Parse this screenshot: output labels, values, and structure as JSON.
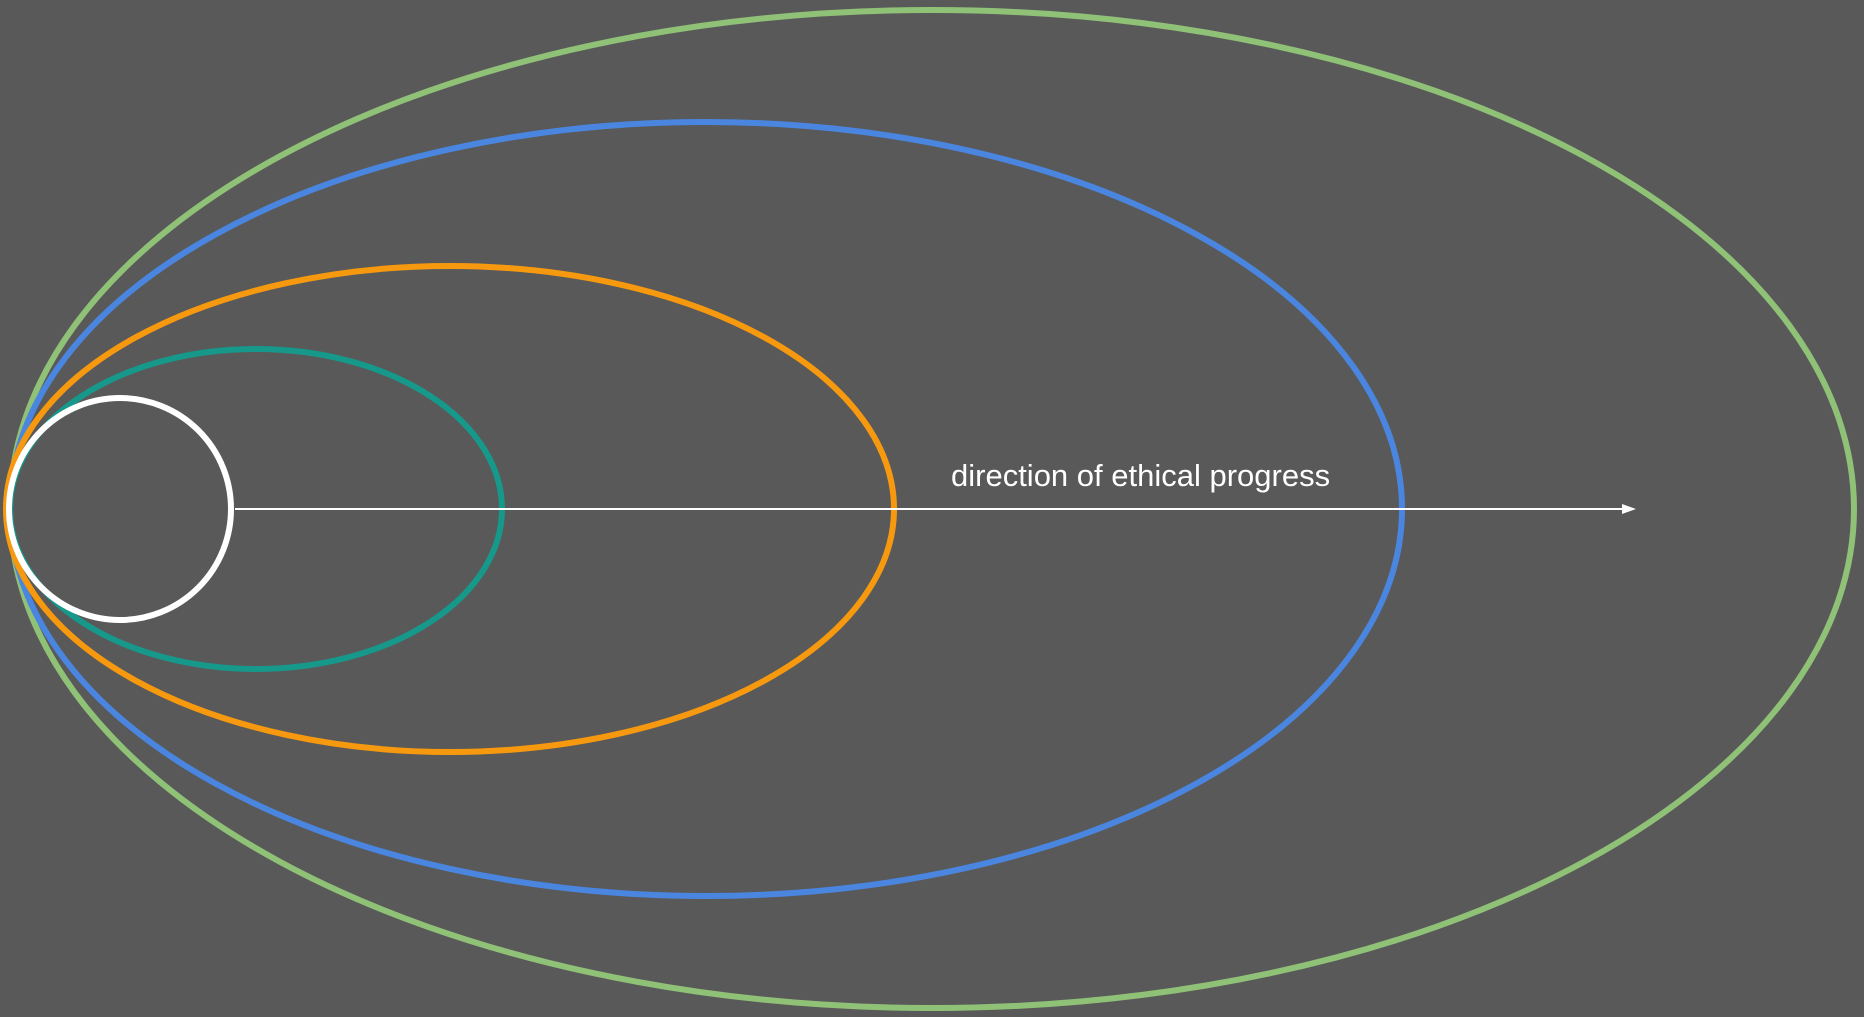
{
  "diagram": {
    "background_color": "#595959",
    "label": "direction of ethical progress",
    "label_color": "#ffffff",
    "arrow_color": "#ffffff",
    "rings": [
      {
        "name": "outermost-ring",
        "color": "#8fc177"
      },
      {
        "name": "fourth-ring",
        "color": "#4a86e0"
      },
      {
        "name": "third-ring",
        "color": "#f7990f"
      },
      {
        "name": "second-ring",
        "color": "#16988a"
      },
      {
        "name": "innermost-circle",
        "color": "#ffffff"
      }
    ]
  }
}
